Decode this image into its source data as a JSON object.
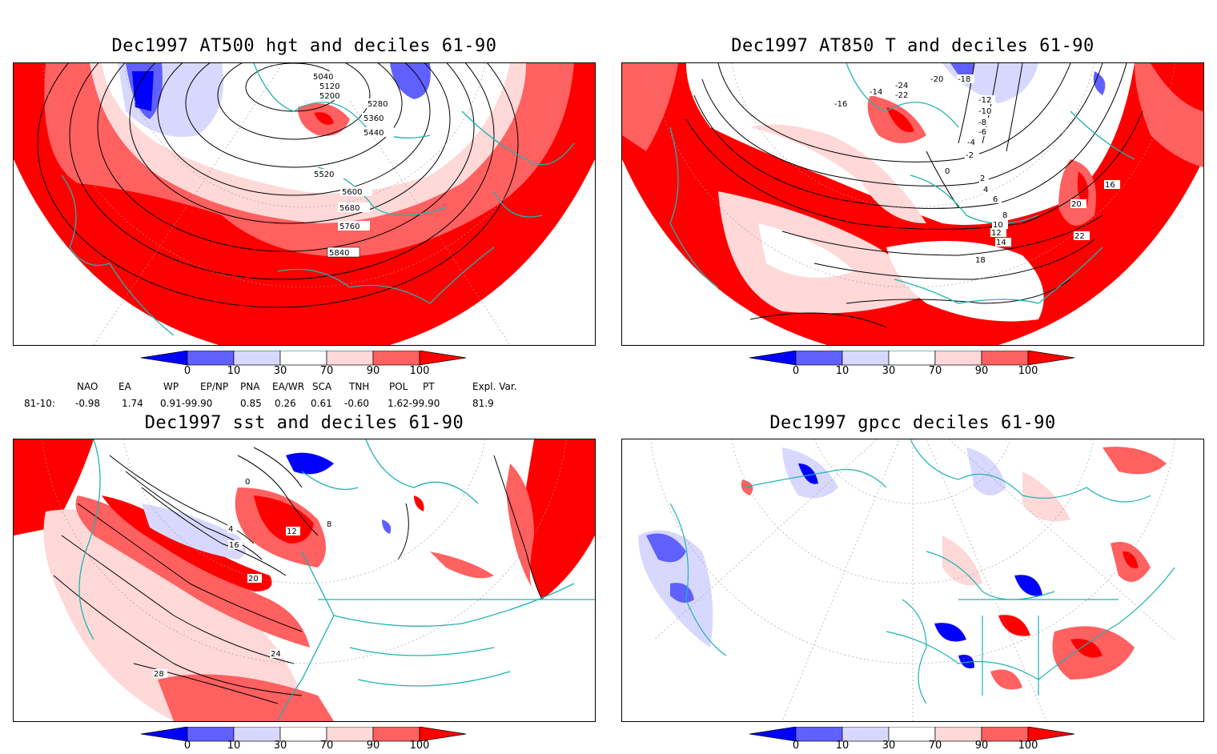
{
  "panels": [
    {
      "title": "Dec1997 AT500 hgt and deciles 61-90",
      "contour_labels": [
        "5040",
        "5120",
        "5200",
        "5280",
        "5360",
        "5440",
        "5520",
        "5600",
        "5680",
        "5760",
        "5840"
      ]
    },
    {
      "title": "Dec1997 AT850 T and deciles 61-90",
      "contour_labels": [
        "-24",
        "-22",
        "-20",
        "-18",
        "-16",
        "-14",
        "-12",
        "-10",
        "-8",
        "-6",
        "-4",
        "-2",
        "0",
        "2",
        "4",
        "6",
        "8",
        "10",
        "12",
        "14",
        "16",
        "18",
        "20",
        "22"
      ]
    },
    {
      "title": "Dec1997 sst and deciles 61-90",
      "contour_labels": [
        "0",
        "4",
        "8",
        "12",
        "16",
        "20",
        "24",
        "28"
      ]
    },
    {
      "title": "Dec1997 gpcc deciles 61-90",
      "contour_labels": []
    }
  ],
  "colorbar": {
    "ticks": [
      "0",
      "10",
      "30",
      "70",
      "90",
      "100"
    ],
    "colors": [
      "#0000ff",
      "#6060ff",
      "#d8d8ff",
      "#ffffff",
      "#ffd8d8",
      "#ff6060",
      "#ff0000"
    ]
  },
  "indices": {
    "headers": [
      "NAO",
      "EA",
      "WP",
      "EP/NP",
      "PNA",
      "EA/WR",
      "SCA",
      "TNH",
      "POL",
      "PT",
      "Expl. Var."
    ],
    "row_label": "81-10:",
    "values": [
      "-0.98",
      "1.74",
      "0.91-99.90",
      "0.85",
      "0.26",
      "0.61",
      "-0.60",
      "1.62-99.90",
      "81.9"
    ]
  },
  "colors": {
    "coast": "#20b2b2",
    "strong_red": "#ff0000",
    "mid_red": "#ff6060",
    "light_red": "#ffd8d8",
    "strong_blue": "#0000ff",
    "mid_blue": "#6060ff",
    "light_blue": "#d8d8ff"
  }
}
